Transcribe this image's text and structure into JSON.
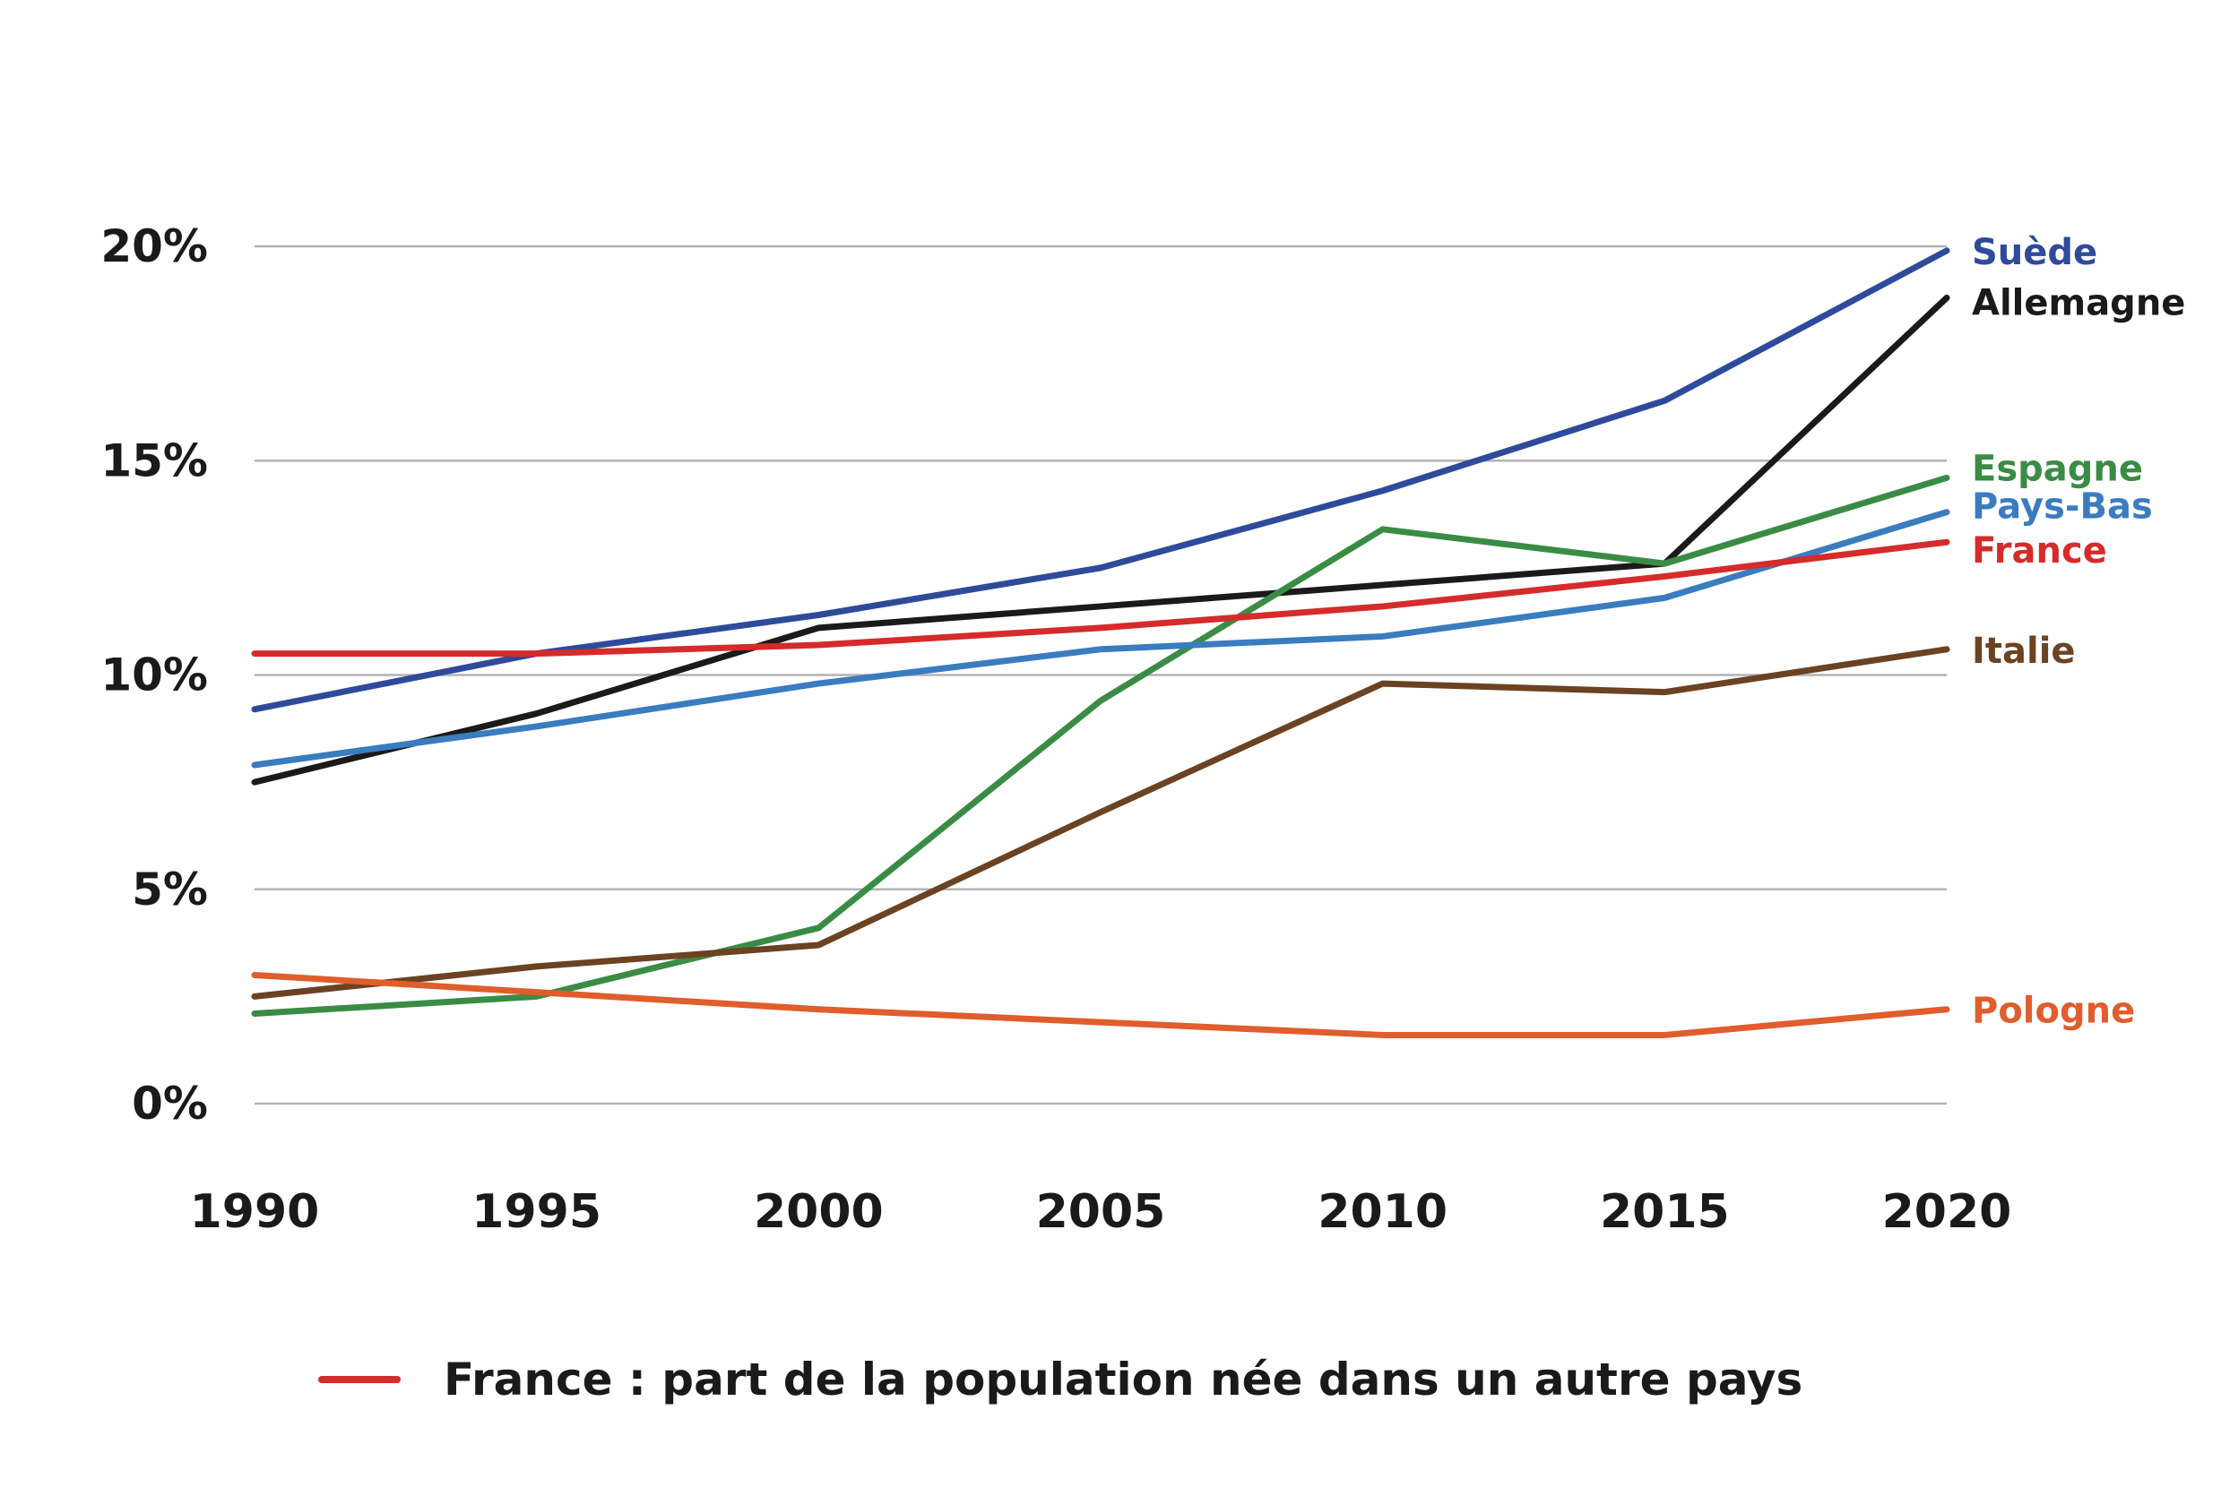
{
  "chart_data": {
    "type": "line",
    "title": "",
    "xlabel": "",
    "ylabel": "",
    "x": [
      1990,
      1995,
      2000,
      2005,
      2010,
      2015,
      2020
    ],
    "x_ticks": [
      "1990",
      "1995",
      "2000",
      "2005",
      "2010",
      "2015",
      "2020"
    ],
    "ylim": [
      0,
      20
    ],
    "y_ticks": [
      {
        "value": 0,
        "label": "0%"
      },
      {
        "value": 5,
        "label": "5%"
      },
      {
        "value": 10,
        "label": "10%"
      },
      {
        "value": 15,
        "label": "15%"
      },
      {
        "value": 20,
        "label": "20%"
      }
    ],
    "grid": "horizontal",
    "series": [
      {
        "name": "Suède",
        "color": "#2e4a9b",
        "values": [
          9.2,
          10.5,
          11.4,
          12.5,
          14.3,
          16.4,
          19.9
        ]
      },
      {
        "name": "Allemagne",
        "color": "#1a1a1a",
        "values": [
          7.5,
          9.1,
          11.1,
          11.6,
          12.1,
          12.6,
          18.8
        ]
      },
      {
        "name": "Espagne",
        "color": "#3a8c45",
        "values": [
          2.1,
          2.5,
          4.1,
          9.4,
          13.4,
          12.6,
          14.6
        ]
      },
      {
        "name": "Pays-Bas",
        "color": "#3a7cc0",
        "values": [
          7.9,
          8.8,
          9.8,
          10.6,
          10.9,
          11.8,
          13.8
        ]
      },
      {
        "name": "France",
        "color": "#d52b2b",
        "values": [
          10.5,
          10.5,
          10.7,
          11.1,
          11.6,
          12.3,
          13.1
        ]
      },
      {
        "name": "Italie",
        "color": "#6b4222",
        "values": [
          2.5,
          3.2,
          3.7,
          6.8,
          9.8,
          9.6,
          10.6
        ]
      },
      {
        "name": "Pologne",
        "color": "#e05d2c",
        "values": [
          3.0,
          2.6,
          2.2,
          1.9,
          1.6,
          1.6,
          2.2
        ]
      }
    ],
    "end_labels": [
      {
        "series": "Suède",
        "text": "Suède"
      },
      {
        "series": "Allemagne",
        "text": "Allemagne"
      },
      {
        "series": "Espagne",
        "text": "Espagne"
      },
      {
        "series": "Pays-Bas",
        "text": "Pays-Bas"
      },
      {
        "series": "France",
        "text": "France"
      },
      {
        "series": "Italie",
        "text": "Italie"
      },
      {
        "series": "Pologne",
        "text": "Pologne"
      }
    ],
    "legend": {
      "placement": "bottom",
      "items": [
        {
          "label": "France : part de la population née dans un autre pays",
          "color": "#d52b2b"
        }
      ]
    }
  }
}
